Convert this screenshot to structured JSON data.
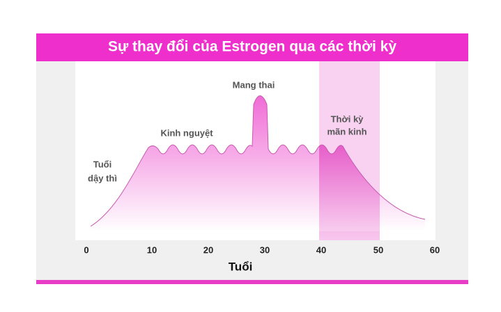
{
  "header": {
    "title": "Sự thay đổi của Estrogen qua các thời kỳ"
  },
  "annotations": {
    "puberty": [
      "Tuổi",
      "dậy thì"
    ],
    "menstruation": "Kinh nguyệt",
    "pregnancy": "Mang thai",
    "menopause": [
      "Thời kỳ",
      "mãn kinh"
    ]
  },
  "x_axis": {
    "ticks": [
      "0",
      "10",
      "20",
      "30",
      "40",
      "50",
      "60"
    ],
    "label": "Tuổi"
  }
}
